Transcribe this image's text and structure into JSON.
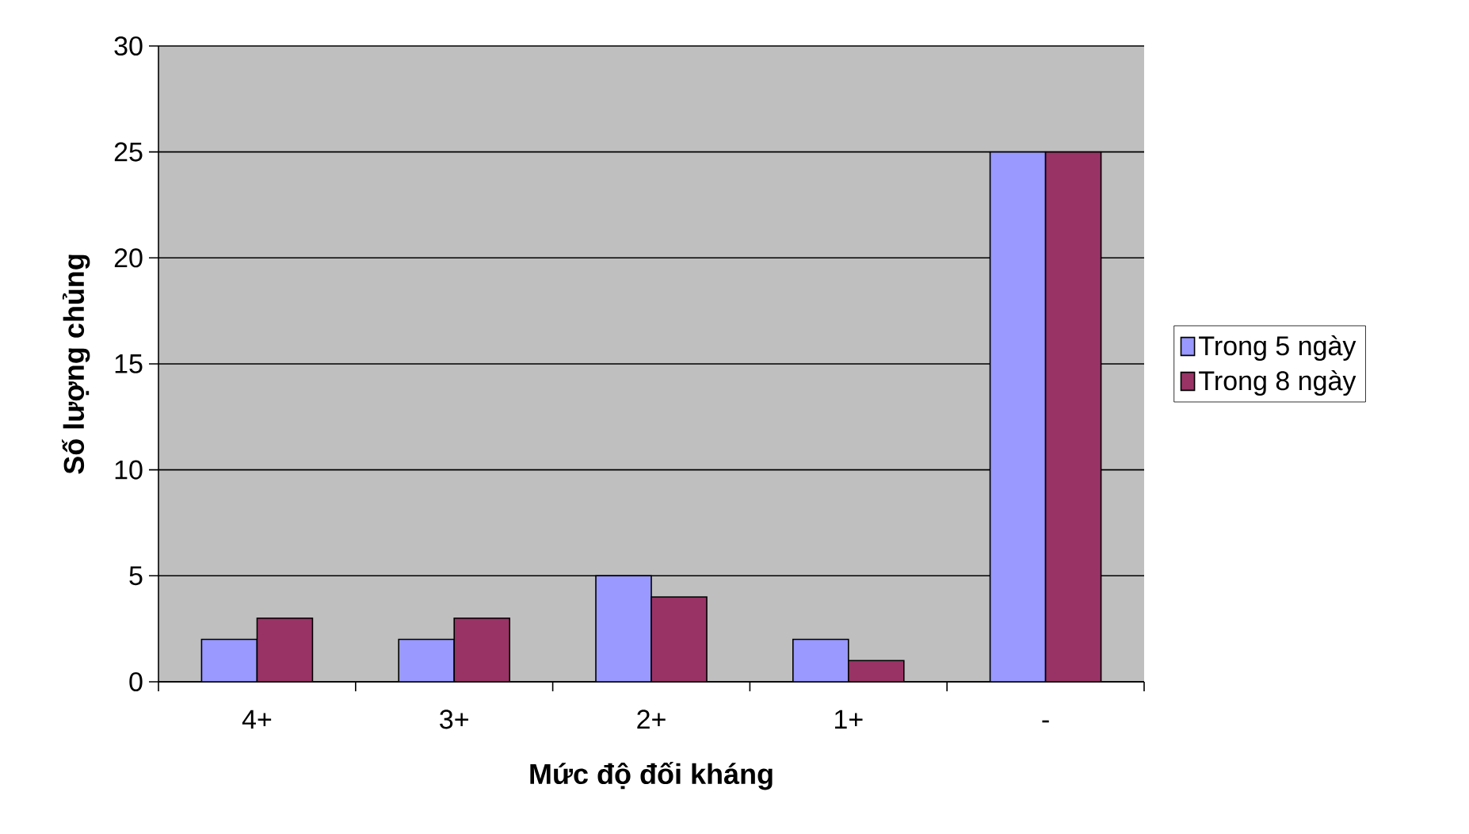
{
  "chart_data": {
    "type": "bar",
    "xlabel": "Mức độ đối kháng",
    "ylabel": "Số lượng chủng",
    "categories": [
      "4+",
      "3+",
      "2+",
      "1+",
      "-"
    ],
    "series": [
      {
        "name": "Trong 5 ngày",
        "color": "#9999ff",
        "values": [
          2,
          2,
          5,
          2,
          25
        ]
      },
      {
        "name": "Trong 8 ngày",
        "color": "#993366",
        "values": [
          3,
          3,
          4,
          1,
          25
        ]
      }
    ],
    "ylim": [
      0,
      30
    ],
    "yticks": [
      0,
      5,
      10,
      15,
      20,
      25,
      30
    ],
    "grid": "y",
    "legend": "right"
  }
}
